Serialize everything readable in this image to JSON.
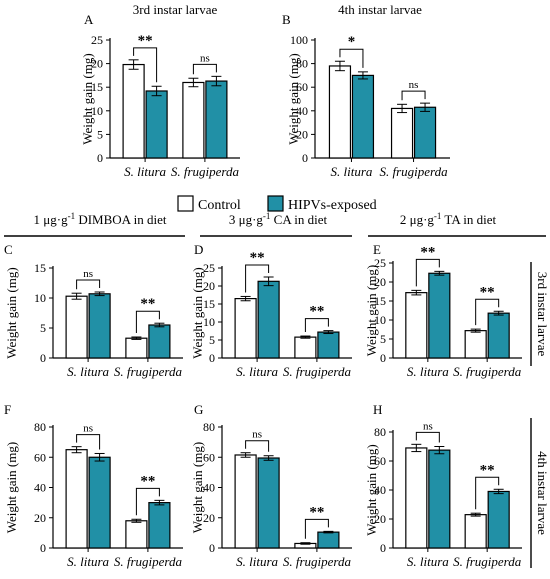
{
  "legend": {
    "control_label": "Control",
    "treated_label": "HIPVs-exposed",
    "control_color": "#ffffff",
    "treated_color": "#2190a6"
  },
  "diet_headers": [
    {
      "prefix": "1 μg·g",
      "sup": "-1",
      "suffix": " DIMBOA in diet"
    },
    {
      "prefix": "3 μg·g",
      "sup": "-1",
      "suffix": " CA in diet"
    },
    {
      "prefix": "2 μg·g",
      "sup": "-1",
      "suffix": " TA in diet"
    }
  ],
  "row_labels": [
    "3rd instar larvae",
    "4th instar larvae"
  ],
  "chart_data": [
    {
      "panel": "A",
      "type": "bar",
      "title": "3rd instar larvae",
      "ylabel": "Weight gain (mg)",
      "categories": [
        "S. litura",
        "S. frugiperda"
      ],
      "ylim": [
        0,
        25
      ],
      "yticks": [
        0,
        5,
        10,
        15,
        20,
        25
      ],
      "series": [
        {
          "name": "Control",
          "values": [
            19.8,
            16.0
          ],
          "errors": [
            1.0,
            0.9
          ]
        },
        {
          "name": "HIPVs-exposed",
          "values": [
            14.2,
            16.3
          ],
          "errors": [
            1.0,
            1.0
          ]
        }
      ],
      "significance": [
        "**",
        "ns"
      ]
    },
    {
      "panel": "B",
      "type": "bar",
      "title": "4th instar larvae",
      "ylabel": "Weight gain (mg)",
      "categories": [
        "S. litura",
        "S. frugiperda"
      ],
      "ylim": [
        0,
        100
      ],
      "yticks": [
        0,
        20,
        40,
        60,
        80,
        100
      ],
      "series": [
        {
          "name": "Control",
          "values": [
            78,
            42
          ],
          "errors": [
            4,
            3.5
          ]
        },
        {
          "name": "HIPVs-exposed",
          "values": [
            70,
            43
          ],
          "errors": [
            3,
            3.5
          ]
        }
      ],
      "significance": [
        "*",
        "ns"
      ]
    },
    {
      "panel": "C",
      "type": "bar",
      "ylabel": "Weight gain (mg)",
      "categories": [
        "S. litura",
        "S. frugiperda"
      ],
      "ylim": [
        0,
        15
      ],
      "yticks": [
        0,
        5,
        10,
        15
      ],
      "series": [
        {
          "name": "Control",
          "values": [
            10.3,
            3.3
          ],
          "errors": [
            0.5,
            0.2
          ]
        },
        {
          "name": "HIPVs-exposed",
          "values": [
            10.7,
            5.5
          ],
          "errors": [
            0.3,
            0.3
          ]
        }
      ],
      "significance": [
        "ns",
        "**"
      ]
    },
    {
      "panel": "D",
      "type": "bar",
      "ylabel": "Weight gain (mg)",
      "categories": [
        "S. litura",
        "S. frugiperda"
      ],
      "ylim": [
        0,
        25
      ],
      "yticks": [
        0,
        5,
        10,
        15,
        20,
        25
      ],
      "series": [
        {
          "name": "Control",
          "values": [
            16.5,
            5.8
          ],
          "errors": [
            0.6,
            0.3
          ]
        },
        {
          "name": "HIPVs-exposed",
          "values": [
            21.3,
            7.2
          ],
          "errors": [
            1.2,
            0.4
          ]
        }
      ],
      "significance": [
        "**",
        "**"
      ]
    },
    {
      "panel": "E",
      "type": "bar",
      "ylabel": "Weight gain (mg)",
      "categories": [
        "S. litura",
        "S. frugiperda"
      ],
      "ylim": [
        0,
        25
      ],
      "yticks": [
        0,
        5,
        10,
        15,
        20,
        25
      ],
      "series": [
        {
          "name": "Control",
          "values": [
            17.2,
            7.2
          ],
          "errors": [
            0.6,
            0.4
          ]
        },
        {
          "name": "HIPVs-exposed",
          "values": [
            22.3,
            11.8
          ],
          "errors": [
            0.5,
            0.5
          ]
        }
      ],
      "significance": [
        "**",
        "**"
      ]
    },
    {
      "panel": "F",
      "type": "bar",
      "ylabel": "Weight gain (mg)",
      "categories": [
        "S. litura",
        "S. frugiperda"
      ],
      "ylim": [
        0,
        80
      ],
      "yticks": [
        0,
        20,
        40,
        60,
        80
      ],
      "series": [
        {
          "name": "Control",
          "values": [
            65,
            18
          ],
          "errors": [
            2,
            1
          ]
        },
        {
          "name": "HIPVs-exposed",
          "values": [
            60,
            30
          ],
          "errors": [
            2.5,
            1.5
          ]
        }
      ],
      "significance": [
        "ns",
        "**"
      ]
    },
    {
      "panel": "G",
      "type": "bar",
      "ylabel": "Weight gain (mg)",
      "categories": [
        "S. litura",
        "S. frugiperda"
      ],
      "ylim": [
        0,
        80
      ],
      "yticks": [
        0,
        20,
        40,
        60,
        80
      ],
      "series": [
        {
          "name": "Control",
          "values": [
            61.5,
            3
          ],
          "errors": [
            1.5,
            0.5
          ]
        },
        {
          "name": "HIPVs-exposed",
          "values": [
            59.5,
            10.5
          ],
          "errors": [
            1.5,
            0.5
          ]
        }
      ],
      "significance": [
        "ns",
        "**"
      ]
    },
    {
      "panel": "H",
      "type": "bar",
      "ylabel": "Weight gain (mg)",
      "categories": [
        "S. litura",
        "S. frugiperda"
      ],
      "ylim": [
        0,
        80
      ],
      "yticks": [
        0,
        20,
        40,
        60,
        80
      ],
      "series": [
        {
          "name": "Control",
          "values": [
            69,
            23
          ],
          "errors": [
            2.5,
            1
          ]
        },
        {
          "name": "HIPVs-exposed",
          "values": [
            67.5,
            39
          ],
          "errors": [
            2.5,
            1.5
          ]
        }
      ],
      "significance": [
        "ns",
        "**"
      ]
    }
  ]
}
